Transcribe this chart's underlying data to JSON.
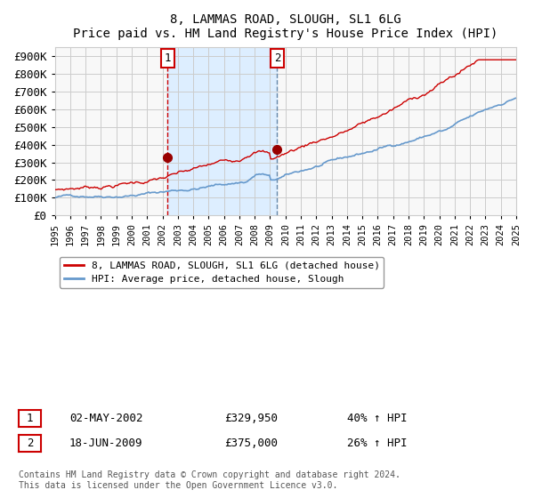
{
  "title": "8, LAMMAS ROAD, SLOUGH, SL1 6LG",
  "subtitle": "Price paid vs. HM Land Registry's House Price Index (HPI)",
  "hpi_line_color": "#6699cc",
  "price_line_color": "#cc0000",
  "marker_color": "#990000",
  "vline_color_1": "#cc0000",
  "vline_color_2": "#6688aa",
  "shade_color": "#ddeeff",
  "ylim": [
    0,
    950000
  ],
  "yticks": [
    0,
    100000,
    200000,
    300000,
    400000,
    500000,
    600000,
    700000,
    800000,
    900000
  ],
  "ytick_labels": [
    "£0",
    "£100K",
    "£200K",
    "£300K",
    "£400K",
    "£500K",
    "£600K",
    "£700K",
    "£800K",
    "£900K"
  ],
  "x_start_year": 1995,
  "x_end_year": 2025,
  "purchase1_date": 2002.33,
  "purchase1_price": 329950,
  "purchase2_date": 2009.46,
  "purchase2_price": 375000,
  "purchase1_label": "02-MAY-2002",
  "purchase2_label": "18-JUN-2009",
  "purchase1_pct": "40% ↑ HPI",
  "purchase2_pct": "26% ↑ HPI",
  "legend_house_label": "8, LAMMAS ROAD, SLOUGH, SL1 6LG (detached house)",
  "legend_hpi_label": "HPI: Average price, detached house, Slough",
  "footnote": "Contains HM Land Registry data © Crown copyright and database right 2024.\nThis data is licensed under the Open Government Licence v3.0.",
  "grid_color": "#cccccc",
  "bg_color": "#ffffff",
  "plot_bg_color": "#f8f8f8"
}
